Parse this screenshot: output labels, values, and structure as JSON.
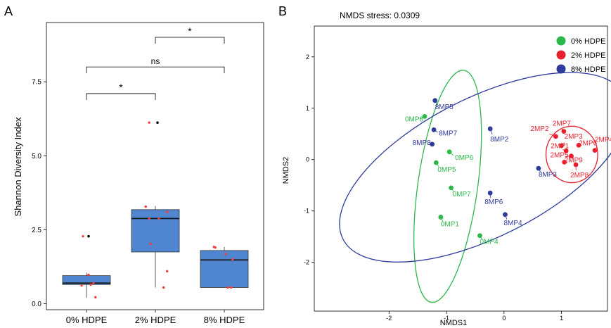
{
  "chart_data": [
    {
      "panel": "A",
      "type": "box",
      "ylabel": "Shannon Diversity Index",
      "xlabel": "",
      "ylim": [
        -0.2,
        9.5
      ],
      "yticks": [
        0.0,
        2.5,
        5.0,
        7.5
      ],
      "ytick_labels": [
        "0.0",
        "2.5",
        "5.0",
        "7.5"
      ],
      "categories": [
        "0% HDPE",
        "2% HDPE",
        "8% HDPE"
      ],
      "box_color": "#4f86cf",
      "point_color": "#f0403a",
      "boxes": [
        {
          "q1": 0.65,
          "median": 0.7,
          "q3": 0.95,
          "whisker_low": 0.2,
          "whisker_high": 1.05,
          "outliers": [
            2.28
          ]
        },
        {
          "q1": 1.75,
          "median": 2.88,
          "q3": 3.18,
          "whisker_low": 0.55,
          "whisker_high": 3.3,
          "outliers": [
            6.12
          ]
        },
        {
          "q1": 0.55,
          "median": 1.48,
          "q3": 1.8,
          "whisker_low": 0.55,
          "whisker_high": 1.92,
          "outliers": []
        }
      ],
      "jitter_points": [
        [
          0.95,
          2.28
        ],
        [
          0.93,
          0.62
        ],
        [
          1.03,
          0.98
        ],
        [
          1.06,
          0.65
        ],
        [
          1.13,
          0.22
        ],
        [
          1.1,
          0.7
        ],
        [
          1.91,
          6.12
        ],
        [
          1.86,
          3.28
        ],
        [
          1.91,
          2.88
        ],
        [
          2.05,
          2.88
        ],
        [
          2.17,
          3.1
        ],
        [
          1.93,
          2.02
        ],
        [
          2.17,
          1.1
        ],
        [
          2.12,
          0.55
        ],
        [
          2.85,
          1.92
        ],
        [
          2.87,
          1.9
        ],
        [
          3.02,
          1.68
        ],
        [
          3.12,
          1.5
        ],
        [
          3.05,
          0.55
        ],
        [
          3.1,
          0.55
        ]
      ],
      "significance": [
        {
          "from": 1,
          "to": 2,
          "y": 7.1,
          "label": "*"
        },
        {
          "from": 1,
          "to": 3,
          "y": 8.0,
          "label": "ns"
        },
        {
          "from": 2,
          "to": 3,
          "y": 9.0,
          "label": "*"
        }
      ]
    },
    {
      "panel": "B",
      "type": "scatter",
      "title": "NMDS stress: 0.0309",
      "xlabel": "NMDS1",
      "ylabel": "NMDS2",
      "xlim": [
        -3.3,
        1.8
      ],
      "ylim": [
        -2.95,
        2.6
      ],
      "xticks": [
        -2,
        -1,
        0,
        1
      ],
      "yticks": [
        -2,
        -1,
        0,
        1,
        2
      ],
      "legend_position": "top-right",
      "series": [
        {
          "name": "0% HDPE",
          "color": "#2db84a",
          "ellipse": {
            "cx": -0.98,
            "cy": -0.52,
            "rx": 0.52,
            "ry": 2.28,
            "angle": 8
          },
          "points": [
            {
              "label": "0MP8",
              "x": -1.38,
              "y": 0.84
            },
            {
              "label": "0MP6",
              "x": -0.95,
              "y": 0.15
            },
            {
              "label": "0MP5",
              "x": -1.18,
              "y": -0.06
            },
            {
              "label": "0MP7",
              "x": -0.92,
              "y": -0.55
            },
            {
              "label": "0MP1",
              "x": -1.1,
              "y": -1.12
            },
            {
              "label": "0MP4",
              "x": -0.42,
              "y": -1.48
            }
          ]
        },
        {
          "name": "2% HDPE",
          "color": "#e8202e",
          "ellipse": {
            "cx": 1.18,
            "cy": 0.1,
            "rx": 0.45,
            "ry": 0.55,
            "angle": 0
          },
          "points": [
            {
              "label": "2MP7",
              "x": 1.04,
              "y": 0.55
            },
            {
              "label": "2MP2",
              "x": 0.9,
              "y": 0.45
            },
            {
              "label": "2MP3",
              "x": 1.0,
              "y": 0.27
            },
            {
              "label": "2MP4",
              "x": 1.58,
              "y": 0.18
            },
            {
              "label": "2MP1",
              "x": 1.08,
              "y": 0.17
            },
            {
              "label": "2MP6",
              "x": 1.3,
              "y": 0.28
            },
            {
              "label": "2MP5",
              "x": 1.17,
              "y": 0.07
            },
            {
              "label": "2MP9",
              "x": 1.05,
              "y": -0.05
            },
            {
              "label": "2MP8",
              "x": 1.25,
              "y": -0.1
            }
          ]
        },
        {
          "name": "8% HDPE",
          "color": "#2e3b9b",
          "ellipse": {
            "cx": -0.35,
            "cy": -0.15,
            "rx": 2.75,
            "ry": 1.35,
            "angle": -27
          },
          "points": [
            {
              "label": "8MP5",
              "x": -1.2,
              "y": 1.15
            },
            {
              "label": "8MP7",
              "x": -1.22,
              "y": 0.58
            },
            {
              "label": "8MP8",
              "x": -1.25,
              "y": 0.3
            },
            {
              "label": "8MP2",
              "x": -0.24,
              "y": 0.6
            },
            {
              "label": "8MP3",
              "x": 0.6,
              "y": -0.17
            },
            {
              "label": "8MP6",
              "x": -0.24,
              "y": -0.65
            },
            {
              "label": "8MP4",
              "x": 0.02,
              "y": -1.07
            }
          ]
        }
      ]
    }
  ],
  "panel_labels": [
    "A",
    "B"
  ]
}
